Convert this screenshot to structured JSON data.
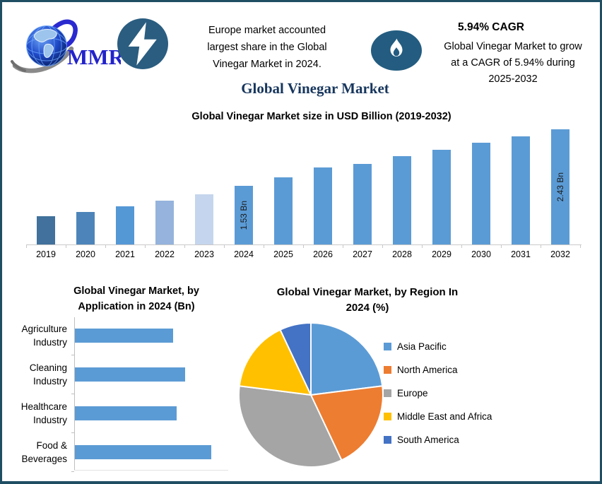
{
  "header": {
    "logo_text": "MMR",
    "fact": {
      "lines": [
        "Europe market accounted",
        "largest share in the Global",
        "Vinegar Market in 2024."
      ]
    },
    "cagr": {
      "headline": "5.94% CAGR",
      "lines": [
        "Global Vinegar Market to grow",
        "at a CAGR of 5.94% during",
        "2025-2032"
      ]
    }
  },
  "title": "Global Vinegar Market",
  "colors": {
    "border": "#1f4e63",
    "badge": "#2a5d80",
    "flame_badge": "#235c80",
    "title_navy": "#17365d",
    "axis_gray": "#c9c9c9",
    "primary_bar": "#5b9bd5"
  },
  "chart_data": [
    {
      "type": "bar",
      "title": "Global Vinegar Market size in USD Billion (2019-2032)",
      "categories": [
        "2019",
        "2020",
        "2021",
        "2022",
        "2023",
        "2024",
        "2025",
        "2026",
        "2027",
        "2028",
        "2029",
        "2030",
        "2031",
        "2032"
      ],
      "values": [
        1.05,
        1.12,
        1.21,
        1.3,
        1.4,
        1.53,
        1.67,
        1.83,
        1.88,
        2.0,
        2.11,
        2.22,
        2.32,
        2.43
      ],
      "unit": "USD Billion",
      "ylim": [
        0.6,
        2.6
      ],
      "grid": false,
      "bar_colors": [
        "#41719c",
        "#4d85ba",
        "#5598d6",
        "#95b3dc",
        "#c5d5ed",
        "#5b9bd5",
        "#5b9bd5",
        "#5b9bd5",
        "#5b9bd5",
        "#5b9bd5",
        "#5b9bd5",
        "#5b9bd5",
        "#5b9bd5",
        "#5b9bd5"
      ],
      "data_labels": {
        "2024": "1.53 Bn",
        "2032": "2.43 Bn"
      }
    },
    {
      "type": "bar",
      "orientation": "horizontal",
      "title_lines": [
        "Global Vinegar Market, by",
        "Application in 2024 (Bn)"
      ],
      "categories": [
        "Agriculture Industry",
        "Cleaning Industry",
        "Healthcare Industry",
        "Food & Beverages"
      ],
      "values": [
        0.34,
        0.38,
        0.35,
        0.47
      ],
      "unit": "USD Billion",
      "xlim": [
        0,
        0.5
      ],
      "grid": false,
      "bar_color": "#5b9bd5"
    },
    {
      "type": "pie",
      "title_lines": [
        "Global Vinegar Market, by Region In",
        "2024 (%)"
      ],
      "unit": "%",
      "legend_position": "right",
      "slices": [
        {
          "label": "Asia Pacific",
          "value": 23,
          "color": "#5b9bd5"
        },
        {
          "label": "North America",
          "value": 20,
          "color": "#ed7d31"
        },
        {
          "label": "Europe",
          "value": 34,
          "color": "#a5a5a5"
        },
        {
          "label": "Middle East and Africa",
          "value": 16,
          "color": "#ffc000"
        },
        {
          "label": "South America",
          "value": 7,
          "color": "#4472c4"
        }
      ]
    }
  ]
}
